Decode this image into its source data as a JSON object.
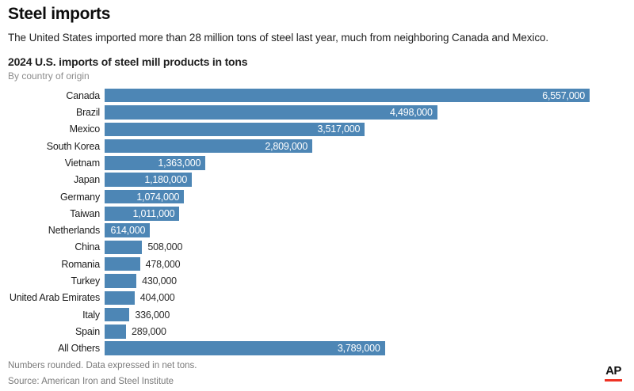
{
  "header": {
    "title": "Steel imports",
    "dek": "The United States imported more than 28 million tons of steel last year, much from neighboring Canada and Mexico."
  },
  "chart": {
    "title": "2024 U.S. imports of steel mill products in tons",
    "subtitle": "By country of origin"
  },
  "chart_data": {
    "type": "bar",
    "orientation": "horizontal",
    "title": "2024 U.S. imports of steel mill products in tons",
    "subtitle": "By country of origin",
    "categories": [
      "Canada",
      "Brazil",
      "Mexico",
      "South Korea",
      "Vietnam",
      "Japan",
      "Germany",
      "Taiwan",
      "Netherlands",
      "China",
      "Romania",
      "Turkey",
      "United Arab Emirates",
      "Italy",
      "Spain",
      "All Others"
    ],
    "values": [
      6557000,
      4498000,
      3517000,
      2809000,
      1363000,
      1180000,
      1074000,
      1011000,
      614000,
      508000,
      478000,
      430000,
      404000,
      336000,
      289000,
      3789000
    ],
    "value_labels": [
      "6,557,000",
      "4,498,000",
      "3,517,000",
      "2,809,000",
      "1,363,000",
      "1,180,000",
      "1,074,000",
      "1,011,000",
      "614,000",
      "508,000",
      "478,000",
      "430,000",
      "404,000",
      "336,000",
      "289,000",
      "3,789,000"
    ],
    "xlim": [
      0,
      6557000
    ],
    "grid": false,
    "legend": "none",
    "bar_color": "#4d86b5",
    "inside_label_min_value": 600000
  },
  "footer": {
    "note": "Numbers rounded. Data expressed in net tons.",
    "source": "Source: American Iron and Steel Institute",
    "logo": "AP"
  },
  "colors": {
    "bar": "#4d86b5",
    "inside_value_text": "#ffffff",
    "outside_value_text": "#2b2b2b",
    "accent_red": "#ee3224"
  }
}
